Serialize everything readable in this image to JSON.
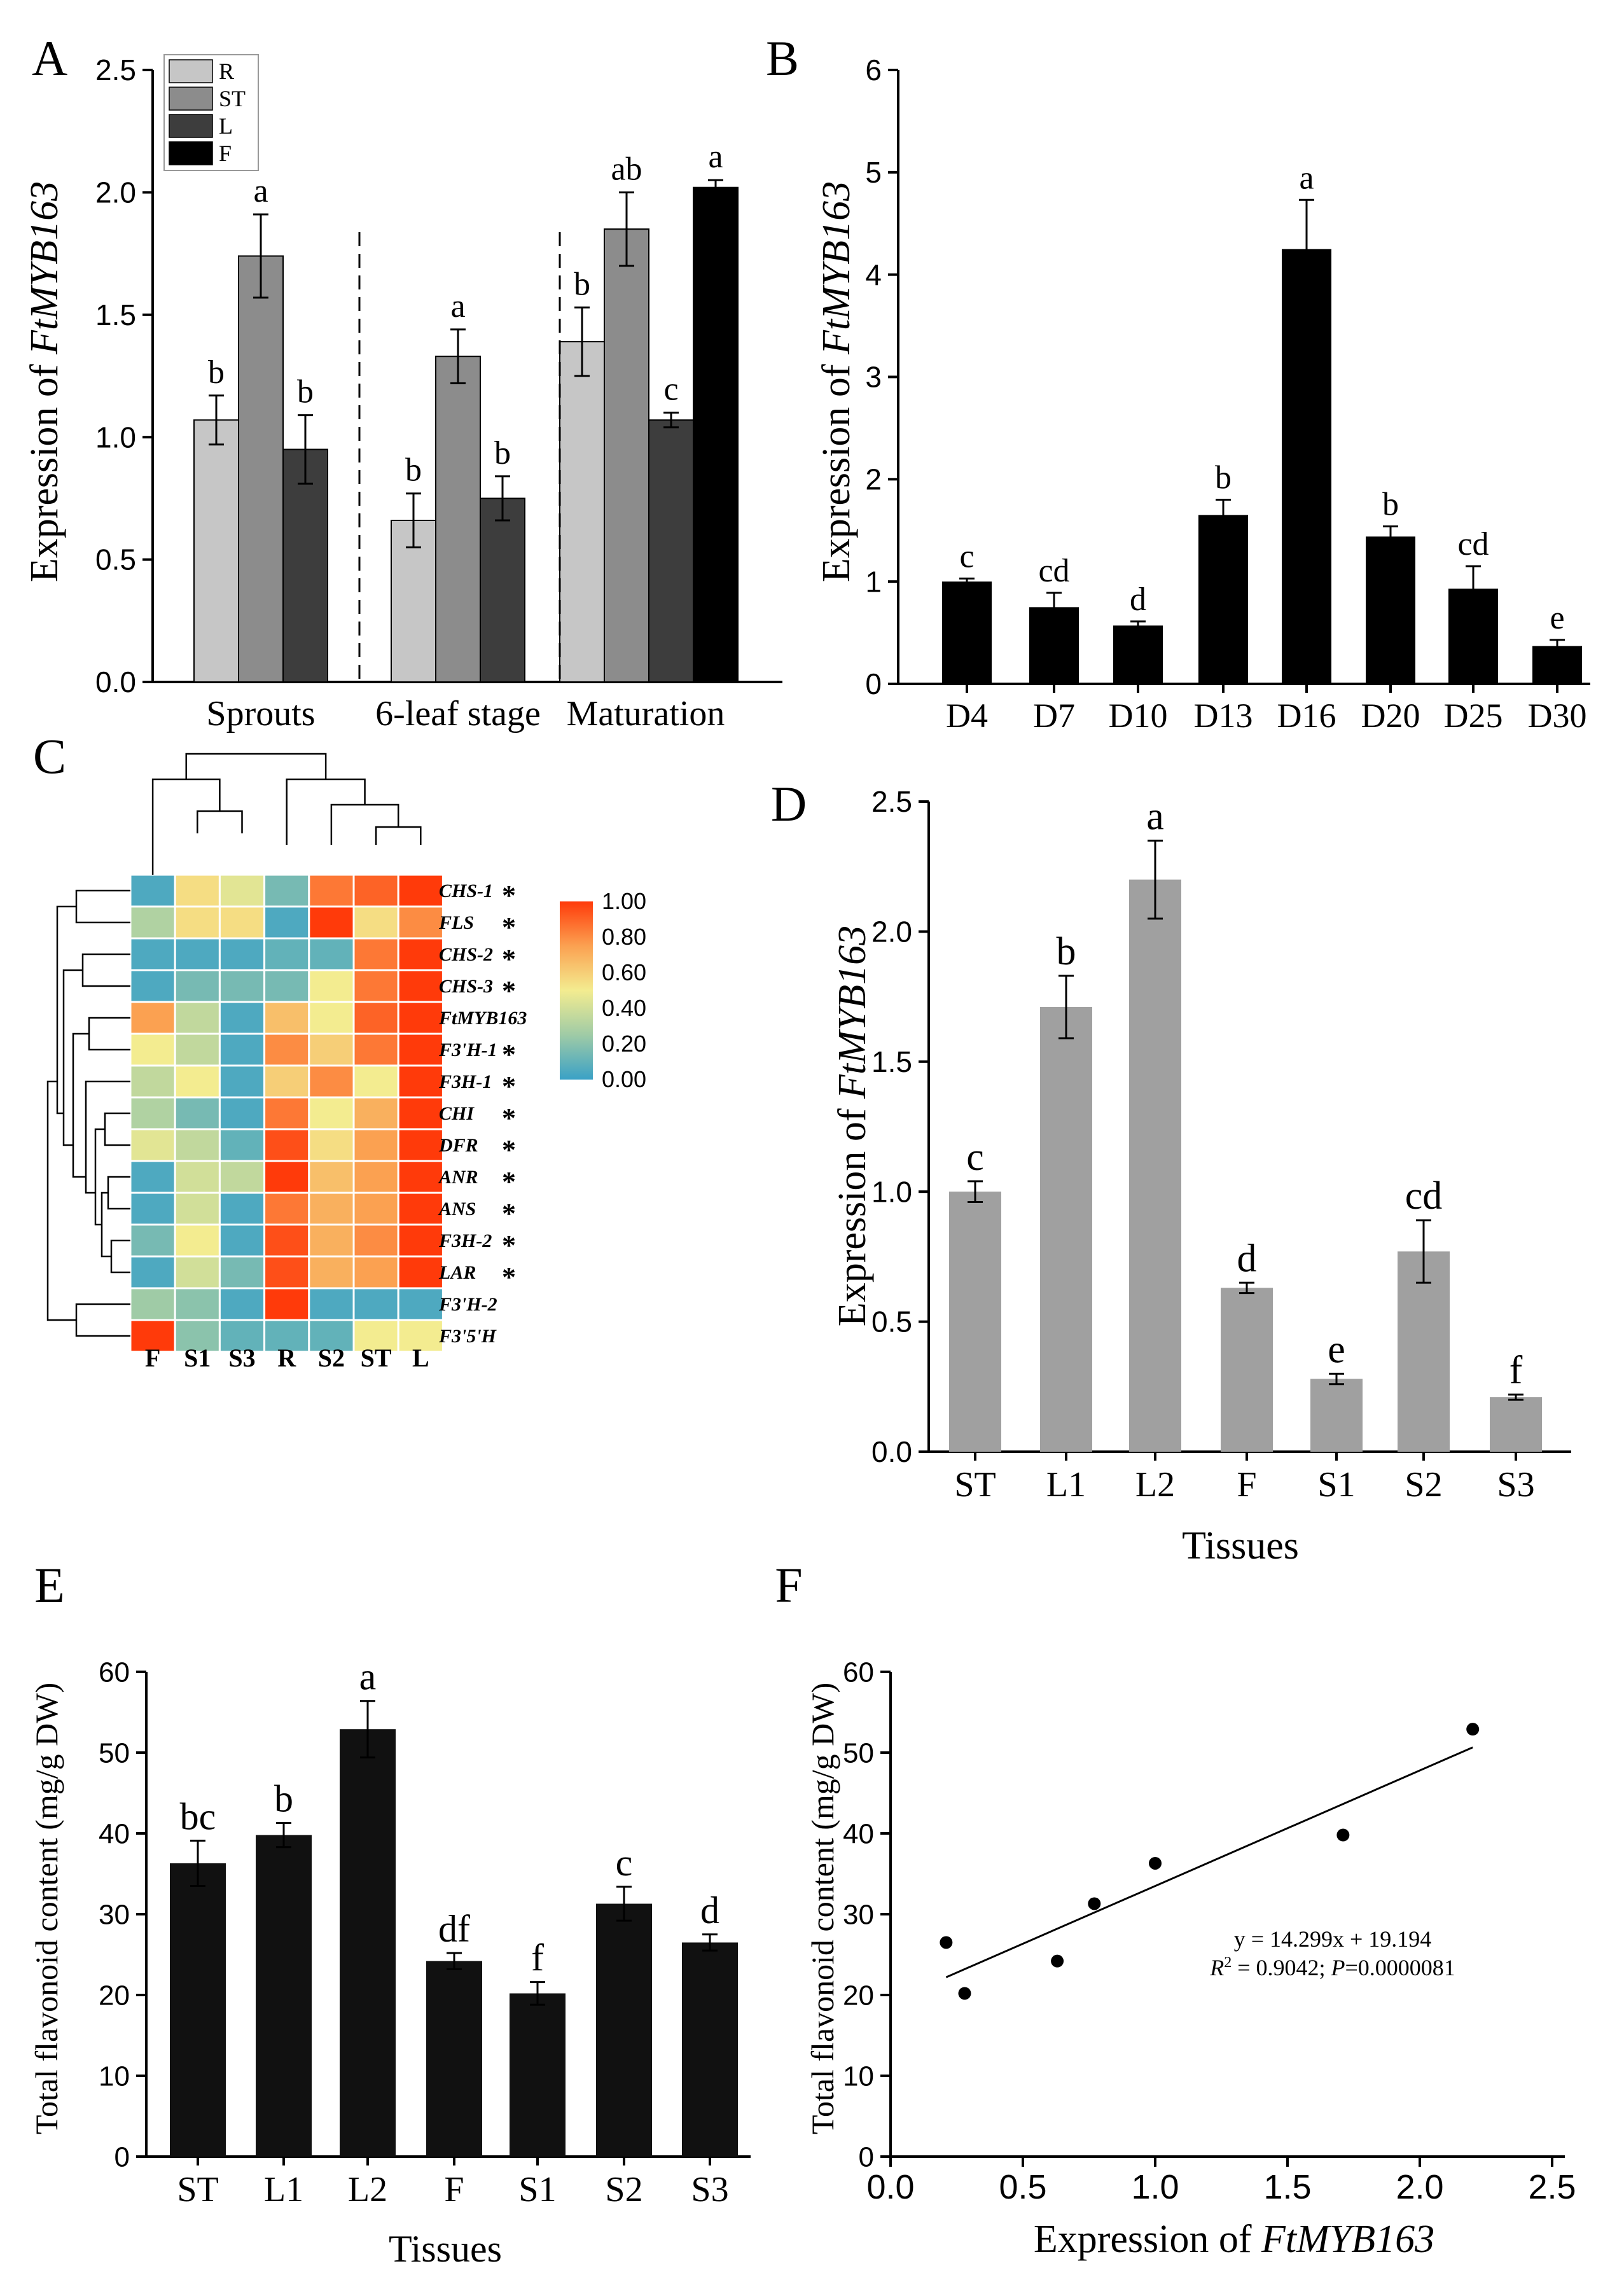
{
  "panels": {
    "A": "A",
    "B": "B",
    "C": "C",
    "D": "D",
    "E": "E",
    "F": "F"
  },
  "chart_data": [
    {
      "id": "A",
      "type": "bar",
      "title": "",
      "ylabel_prefix": "Expression of ",
      "ylabel_gene": "FtMYB163",
      "ylim": [
        0,
        2.5
      ],
      "yticks": [
        "0.0",
        "0.5",
        "1.0",
        "1.5",
        "2.0",
        "2.5"
      ],
      "groups": [
        "Sprouts",
        "6-leaf stage",
        "Maturation"
      ],
      "legend": [
        {
          "name": "R",
          "color": "#c6c6c6"
        },
        {
          "name": "ST",
          "color": "#8c8c8c"
        },
        {
          "name": "L",
          "color": "#3d3d3d"
        },
        {
          "name": "F",
          "color": "#000000"
        }
      ],
      "bars": [
        {
          "group": 0,
          "series": "R",
          "value": 1.07,
          "err": 0.1,
          "label": "b"
        },
        {
          "group": 0,
          "series": "ST",
          "value": 1.74,
          "err": 0.17,
          "label": "a"
        },
        {
          "group": 0,
          "series": "L",
          "value": 0.95,
          "err": 0.14,
          "label": "b"
        },
        {
          "group": 1,
          "series": "R",
          "value": 0.66,
          "err": 0.11,
          "label": "b"
        },
        {
          "group": 1,
          "series": "ST",
          "value": 1.33,
          "err": 0.11,
          "label": "a"
        },
        {
          "group": 1,
          "series": "L",
          "value": 0.75,
          "err": 0.09,
          "label": "b"
        },
        {
          "group": 2,
          "series": "R",
          "value": 1.39,
          "err": 0.14,
          "label": "b"
        },
        {
          "group": 2,
          "series": "ST",
          "value": 1.85,
          "err": 0.15,
          "label": "ab"
        },
        {
          "group": 2,
          "series": "L",
          "value": 1.07,
          "err": 0.03,
          "label": "c"
        },
        {
          "group": 2,
          "series": "F",
          "value": 2.02,
          "err": 0.03,
          "label": "a"
        }
      ]
    },
    {
      "id": "B",
      "type": "bar",
      "title": "",
      "ylabel_prefix": "Expression of ",
      "ylabel_gene": "FtMYB163",
      "ylim": [
        0,
        6
      ],
      "yticks": [
        "0",
        "1",
        "2",
        "3",
        "4",
        "5",
        "6"
      ],
      "categories": [
        "D4",
        "D7",
        "D10",
        "D13",
        "D16",
        "D20",
        "D25",
        "D30"
      ],
      "values": [
        1.0,
        0.75,
        0.57,
        1.65,
        4.25,
        1.44,
        0.93,
        0.37
      ],
      "errors": [
        0.03,
        0.14,
        0.04,
        0.15,
        0.48,
        0.1,
        0.22,
        0.06
      ],
      "letters": [
        "c",
        "cd",
        "d",
        "b",
        "a",
        "b",
        "cd",
        "e"
      ],
      "color": "#000000"
    },
    {
      "id": "C",
      "type": "heatmap",
      "columns": [
        "F",
        "S1",
        "S3",
        "R",
        "S2",
        "ST",
        "L"
      ],
      "rows": [
        "CHS-1",
        "FLS",
        "CHS-2",
        "CHS-3",
        "FtMYB163",
        "F3'H-1",
        "F3H-1",
        "CHI",
        "DFR",
        "ANR",
        "ANS",
        "F3H-2",
        "LAR",
        "F3'H-2",
        "F3'5'H"
      ],
      "row_marks": [
        "*",
        "*",
        "*",
        "*",
        "",
        "*",
        "*",
        "*",
        "*",
        "*",
        "*",
        "*",
        "*",
        "",
        ""
      ],
      "values": [
        [
          0.05,
          0.55,
          0.45,
          0.15,
          0.85,
          0.9,
          1.0
        ],
        [
          0.3,
          0.55,
          0.55,
          0.05,
          1.0,
          0.55,
          0.8
        ],
        [
          0.05,
          0.05,
          0.05,
          0.1,
          0.1,
          0.85,
          1.0
        ],
        [
          0.05,
          0.15,
          0.15,
          0.15,
          0.5,
          0.85,
          1.0
        ],
        [
          0.75,
          0.35,
          0.05,
          0.65,
          0.5,
          0.9,
          1.0
        ],
        [
          0.5,
          0.35,
          0.05,
          0.8,
          0.6,
          0.85,
          1.0
        ],
        [
          0.35,
          0.5,
          0.05,
          0.6,
          0.8,
          0.5,
          1.0
        ],
        [
          0.3,
          0.15,
          0.05,
          0.85,
          0.5,
          0.7,
          1.0
        ],
        [
          0.45,
          0.35,
          0.1,
          0.95,
          0.55,
          0.75,
          1.0
        ],
        [
          0.05,
          0.4,
          0.35,
          1.0,
          0.65,
          0.75,
          1.0
        ],
        [
          0.05,
          0.4,
          0.05,
          0.85,
          0.7,
          0.75,
          1.0
        ],
        [
          0.15,
          0.5,
          0.05,
          0.95,
          0.7,
          0.8,
          1.0
        ],
        [
          0.05,
          0.4,
          0.15,
          0.95,
          0.7,
          0.75,
          1.0
        ],
        [
          0.25,
          0.2,
          0.05,
          1.0,
          0.05,
          0.05,
          0.05
        ],
        [
          1.0,
          0.2,
          0.1,
          0.1,
          0.1,
          0.5,
          0.5
        ]
      ],
      "colorbar_ticks": [
        "1.00",
        "0.80",
        "0.60",
        "0.40",
        "0.20",
        "0.00"
      ],
      "colormap": [
        "#3aa1c6",
        "#9fcba6",
        "#f3ec90",
        "#fba151",
        "#ff3a0a"
      ]
    },
    {
      "id": "D",
      "type": "bar",
      "title": "",
      "ylabel_prefix": "Expression of ",
      "ylabel_gene": "FtMYB163",
      "xlabel": "Tissues",
      "ylim": [
        0,
        2.5
      ],
      "yticks": [
        "0.0",
        "0.5",
        "1.0",
        "1.5",
        "2.0",
        "2.5"
      ],
      "categories": [
        "ST",
        "L1",
        "L2",
        "F",
        "S1",
        "S2",
        "S3"
      ],
      "values": [
        1.0,
        1.71,
        2.2,
        0.63,
        0.28,
        0.77,
        0.21
      ],
      "errors": [
        0.04,
        0.12,
        0.15,
        0.02,
        0.02,
        0.12,
        0.01
      ],
      "letters": [
        "c",
        "b",
        "a",
        "d",
        "e",
        "cd",
        "f"
      ],
      "color": "#a0a0a0"
    },
    {
      "id": "E",
      "type": "bar",
      "title": "",
      "ylabel": "Total flavonoid content (mg/g DW)",
      "xlabel": "Tissues",
      "ylim": [
        0,
        60
      ],
      "yticks": [
        "0",
        "10",
        "20",
        "30",
        "40",
        "50",
        "60"
      ],
      "categories": [
        "ST",
        "L1",
        "L2",
        "F",
        "S1",
        "S2",
        "S3"
      ],
      "values": [
        36.3,
        39.8,
        52.9,
        24.2,
        20.2,
        31.3,
        26.5
      ],
      "errors": [
        2.8,
        1.5,
        3.5,
        1.0,
        1.4,
        2.1,
        1.0
      ],
      "letters": [
        "bc",
        "b",
        "a",
        "df",
        "f",
        "c",
        "d"
      ],
      "color": "#111111"
    },
    {
      "id": "F",
      "type": "scatter",
      "title": "",
      "ylabel": "Total flavonoid content (mg/g DW)",
      "xlabel_prefix": "Expression of ",
      "xlabel_gene": "FtMYB163",
      "xlim": [
        0,
        2.5
      ],
      "ylim": [
        0,
        60
      ],
      "xticks": [
        "0.0",
        "0.5",
        "1.0",
        "1.5",
        "2.0",
        "2.5"
      ],
      "yticks": [
        "0",
        "10",
        "20",
        "30",
        "40",
        "50",
        "60"
      ],
      "points": [
        {
          "x": 0.21,
          "y": 26.5
        },
        {
          "x": 0.28,
          "y": 20.2
        },
        {
          "x": 0.63,
          "y": 24.2
        },
        {
          "x": 0.77,
          "y": 31.3
        },
        {
          "x": 1.0,
          "y": 36.3
        },
        {
          "x": 1.71,
          "y": 39.8
        },
        {
          "x": 2.2,
          "y": 52.9
        }
      ],
      "fit": {
        "slope": 14.299,
        "intercept": 19.194,
        "x_from": 0.21,
        "x_to": 2.2
      },
      "equation": "y = 14.299x + 19.194",
      "r2_label": "R",
      "r2_sup": "2",
      "r2_value": " = 0.9042; ",
      "p_label": "P",
      "p_value": "=0.0000081"
    }
  ]
}
